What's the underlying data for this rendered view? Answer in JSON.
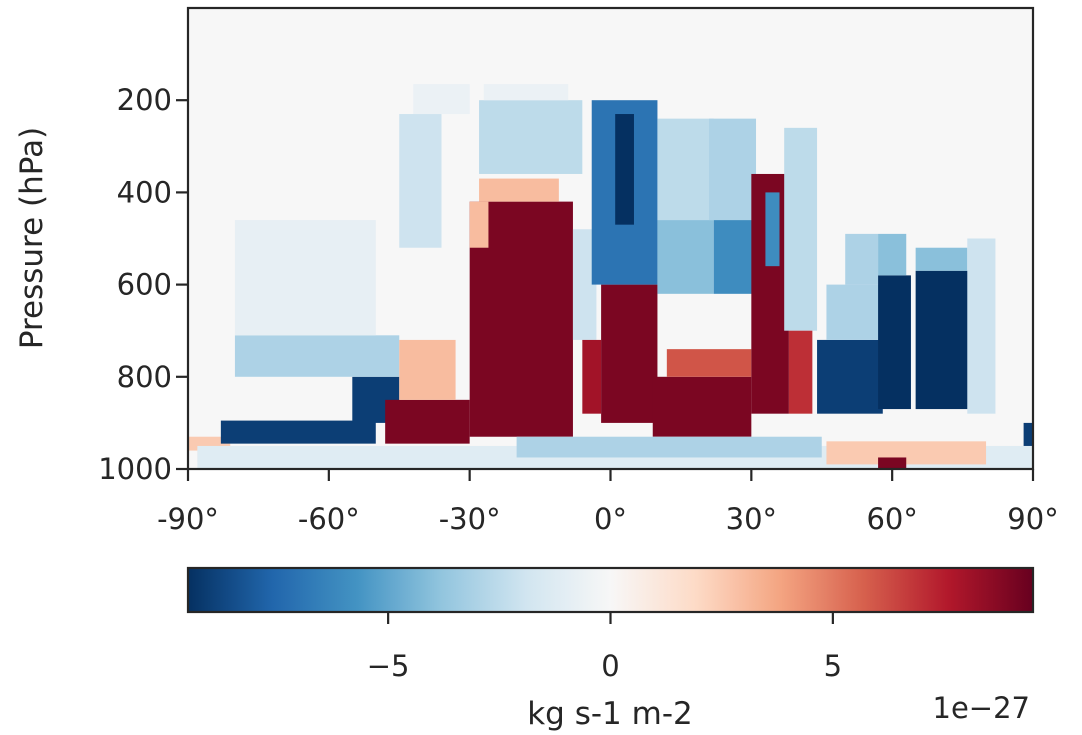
{
  "chart_data": {
    "type": "heatmap",
    "title": "",
    "xlabel": "",
    "ylabel": "Pressure (hPa)",
    "xlim": [
      -90,
      90
    ],
    "ylim": [
      1000,
      0
    ],
    "x_ticks": [
      -90,
      -60,
      -30,
      0,
      30,
      60,
      90
    ],
    "x_tick_labels": [
      "-90°",
      "-60°",
      "-30°",
      "0°",
      "30°",
      "60°",
      "90°"
    ],
    "y_ticks": [
      200,
      400,
      600,
      800,
      1000
    ],
    "y_tick_labels": [
      "200",
      "400",
      "600",
      "800",
      "1000"
    ],
    "colormap": "RdBu_r",
    "colors": {
      "neg_extreme": "#053061",
      "zero": "#f7f7f7",
      "pos_extreme": "#67001f"
    },
    "vmin": -9.5e-27,
    "vmax": 9.5e-27,
    "colorbar": {
      "label": "kg s-1 m-2",
      "offset_text": "1e−27",
      "ticks": [
        -5,
        0,
        5
      ],
      "tick_labels": [
        "−5",
        "0",
        "5"
      ],
      "orientation": "horizontal",
      "placement": "bottom"
    },
    "regions": [
      {
        "lat": [
          -90,
          -81
        ],
        "p": [
          930,
          960
        ],
        "value": 2.5
      },
      {
        "lat": [
          -83,
          -50
        ],
        "p": [
          895,
          945
        ],
        "value": -9
      },
      {
        "lat": [
          -55,
          -45
        ],
        "p": [
          800,
          900
        ],
        "value": -9
      },
      {
        "lat": [
          -80,
          -45
        ],
        "p": [
          710,
          800
        ],
        "value": -3
      },
      {
        "lat": [
          -80,
          -50
        ],
        "p": [
          460,
          710
        ],
        "value": -0.8
      },
      {
        "lat": [
          -88,
          -35
        ],
        "p": [
          955,
          985
        ],
        "value": 1.2
      },
      {
        "lat": [
          -48,
          -30
        ],
        "p": [
          850,
          945
        ],
        "value": 9
      },
      {
        "lat": [
          -45,
          -33
        ],
        "p": [
          720,
          850
        ],
        "value": 3
      },
      {
        "lat": [
          -45,
          -36
        ],
        "p": [
          230,
          520
        ],
        "value": -2
      },
      {
        "lat": [
          -42,
          -30
        ],
        "p": [
          165,
          230
        ],
        "value": -0.6
      },
      {
        "lat": [
          -30,
          -8
        ],
        "p": [
          420,
          930
        ],
        "value": 9
      },
      {
        "lat": [
          -28,
          -11
        ],
        "p": [
          370,
          420
        ],
        "value": 3
      },
      {
        "lat": [
          -30,
          -26
        ],
        "p": [
          420,
          520
        ],
        "value": 3
      },
      {
        "lat": [
          -28,
          -6
        ],
        "p": [
          200,
          360
        ],
        "value": -2.5
      },
      {
        "lat": [
          -27,
          -9
        ],
        "p": [
          165,
          200
        ],
        "value": -0.6
      },
      {
        "lat": [
          -8,
          -3
        ],
        "p": [
          480,
          720
        ],
        "value": -2
      },
      {
        "lat": [
          -6,
          -2
        ],
        "p": [
          720,
          880
        ],
        "value": 8
      },
      {
        "lat": [
          -2,
          10
        ],
        "p": [
          600,
          900
        ],
        "value": 9
      },
      {
        "lat": [
          -4,
          10
        ],
        "p": [
          200,
          600
        ],
        "value": -7
      },
      {
        "lat": [
          1,
          5
        ],
        "p": [
          230,
          470
        ],
        "value": -9.5
      },
      {
        "lat": [
          10,
          22
        ],
        "p": [
          460,
          620
        ],
        "value": -4
      },
      {
        "lat": [
          10,
          22
        ],
        "p": [
          240,
          460
        ],
        "value": -2.5
      },
      {
        "lat": [
          9,
          30
        ],
        "p": [
          800,
          930
        ],
        "value": 9
      },
      {
        "lat": [
          12,
          30
        ],
        "p": [
          740,
          800
        ],
        "value": 6
      },
      {
        "lat": [
          22,
          33
        ],
        "p": [
          460,
          620
        ],
        "value": -6
      },
      {
        "lat": [
          21,
          31
        ],
        "p": [
          240,
          460
        ],
        "value": -3
      },
      {
        "lat": [
          30,
          38
        ],
        "p": [
          360,
          880
        ],
        "value": 9
      },
      {
        "lat": [
          33,
          36
        ],
        "p": [
          400,
          560
        ],
        "value": -6
      },
      {
        "lat": [
          37,
          44
        ],
        "p": [
          260,
          700
        ],
        "value": -2.5
      },
      {
        "lat": [
          38,
          43
        ],
        "p": [
          700,
          880
        ],
        "value": 7
      },
      {
        "lat": [
          -88,
          90
        ],
        "p": [
          950,
          1000
        ],
        "value": -1.2
      },
      {
        "lat": [
          -20,
          45
        ],
        "p": [
          930,
          975
        ],
        "value": -3
      },
      {
        "lat": [
          44,
          58
        ],
        "p": [
          720,
          880
        ],
        "value": -9
      },
      {
        "lat": [
          46,
          58
        ],
        "p": [
          600,
          720
        ],
        "value": -3
      },
      {
        "lat": [
          50,
          57
        ],
        "p": [
          490,
          600
        ],
        "value": -3
      },
      {
        "lat": [
          57,
          64
        ],
        "p": [
          580,
          870
        ],
        "value": -9.5
      },
      {
        "lat": [
          57,
          63
        ],
        "p": [
          490,
          580
        ],
        "value": -4
      },
      {
        "lat": [
          65,
          77
        ],
        "p": [
          570,
          870
        ],
        "value": -9.5
      },
      {
        "lat": [
          65,
          76
        ],
        "p": [
          520,
          570
        ],
        "value": -4
      },
      {
        "lat": [
          76,
          82
        ],
        "p": [
          500,
          880
        ],
        "value": -2
      },
      {
        "lat": [
          46,
          80
        ],
        "p": [
          940,
          990
        ],
        "value": 2.5
      },
      {
        "lat": [
          57,
          63
        ],
        "p": [
          975,
          1000
        ],
        "value": 9
      },
      {
        "lat": [
          88,
          90
        ],
        "p": [
          900,
          950
        ],
        "value": -9
      }
    ]
  }
}
